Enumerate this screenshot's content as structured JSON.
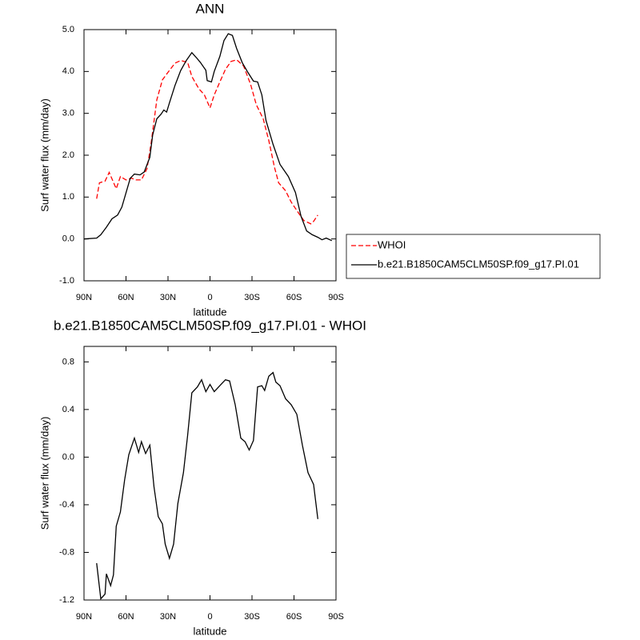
{
  "chart_data": [
    {
      "type": "line",
      "title": "ANN",
      "x_label": "latitude",
      "y_label": "Surf water flux (mm/day)",
      "xlim": [
        90,
        -90
      ],
      "xticks": [
        {
          "value": 90,
          "label": "90N"
        },
        {
          "value": 60,
          "label": "60N"
        },
        {
          "value": 30,
          "label": "30N"
        },
        0,
        {
          "value": -30,
          "label": "30S"
        },
        {
          "value": -60,
          "label": "60S"
        },
        {
          "value": -90,
          "label": "90S"
        }
      ],
      "ylim": [
        -1,
        5
      ],
      "yticks": [
        {
          "value": -1,
          "label": "-1.0"
        },
        {
          "value": 0,
          "label": "0.0"
        },
        {
          "value": 1,
          "label": "1.0"
        },
        {
          "value": 2,
          "label": "2.0"
        },
        {
          "value": 3,
          "label": "3.0"
        },
        {
          "value": 4,
          "label": "4.0"
        },
        {
          "value": 5,
          "label": "5.0"
        }
      ],
      "legend": "outside-right",
      "series": [
        {
          "name": "WHOI",
          "color": "#ff0000",
          "dashed": true,
          "x": [
            81,
            79,
            75,
            72,
            67,
            64,
            60,
            56,
            53,
            49,
            45,
            42,
            38,
            34,
            30,
            25,
            21,
            16,
            13,
            8,
            4,
            0,
            -3,
            -7,
            -11,
            -15,
            -19,
            -24,
            -29,
            -33,
            -38,
            -42,
            -46,
            -49,
            -54,
            -58,
            -63,
            -67,
            -72,
            -74,
            -77
          ],
          "values": [
            0.96,
            1.34,
            1.38,
            1.59,
            1.2,
            1.49,
            1.41,
            1.45,
            1.41,
            1.41,
            1.68,
            2.3,
            3.32,
            3.8,
            3.98,
            4.2,
            4.26,
            4.22,
            3.88,
            3.59,
            3.44,
            3.13,
            3.44,
            3.75,
            4.05,
            4.24,
            4.28,
            4.13,
            3.69,
            3.21,
            2.87,
            2.35,
            1.72,
            1.34,
            1.15,
            0.88,
            0.63,
            0.44,
            0.36,
            0.42,
            0.57
          ]
        },
        {
          "name": "b.e21.B1850CAM5CLM50SP.f09_g17.PI.01",
          "color": "#000000",
          "dashed": false,
          "x": [
            90,
            81,
            78,
            74,
            70,
            66,
            63,
            60,
            57,
            54,
            50,
            47,
            43,
            41,
            38,
            35,
            33,
            31,
            29,
            25,
            21,
            17,
            13,
            10,
            7,
            3,
            2,
            -1,
            -3,
            -7,
            -10,
            -13,
            -16,
            -19,
            -23,
            -27,
            -31,
            -34,
            -37,
            -40,
            -45,
            -50,
            -56,
            -61,
            -65,
            -69,
            -73,
            -77,
            -80,
            -83,
            -87
          ],
          "values": [
            0.0,
            0.02,
            0.1,
            0.28,
            0.48,
            0.57,
            0.76,
            1.1,
            1.45,
            1.55,
            1.53,
            1.6,
            1.95,
            2.48,
            2.87,
            2.98,
            3.08,
            3.03,
            3.25,
            3.67,
            4.02,
            4.26,
            4.45,
            4.34,
            4.22,
            4.03,
            3.78,
            3.75,
            4.0,
            4.36,
            4.74,
            4.9,
            4.86,
            4.55,
            4.21,
            3.98,
            3.77,
            3.75,
            3.44,
            2.83,
            2.26,
            1.78,
            1.49,
            1.11,
            0.54,
            0.19,
            0.1,
            0.04,
            -0.02,
            0.02,
            -0.04
          ]
        }
      ]
    },
    {
      "type": "line",
      "title": "b.e21.B1850CAM5CLM50SP.f09_g17.PI.01 - WHOI",
      "x_label": "latitude",
      "y_label": "Surf water flux (mm/day)",
      "xlim": [
        90,
        -90
      ],
      "xticks": [
        {
          "value": 90,
          "label": "90N"
        },
        {
          "value": 60,
          "label": "60N"
        },
        {
          "value": 30,
          "label": "30N"
        },
        0,
        {
          "value": -30,
          "label": "30S"
        },
        {
          "value": -60,
          "label": "60S"
        },
        {
          "value": -90,
          "label": "90S"
        }
      ],
      "ylim": [
        -1.2,
        0.93
      ],
      "yticks": [
        -1.2,
        -0.8,
        -0.4,
        {
          "value": 0,
          "label": "0.0"
        },
        0.4,
        0.8
      ],
      "series": [
        {
          "color": "#000000",
          "dashed": false,
          "x": [
            81,
            78,
            75,
            74,
            71,
            69,
            67,
            64,
            61,
            58,
            54,
            51,
            49,
            46,
            43,
            40,
            37,
            34,
            32,
            29,
            26,
            23,
            19,
            16,
            13,
            9,
            6,
            3,
            0,
            -3,
            -7,
            -11,
            -14,
            -18,
            -22,
            -25,
            -28,
            -31,
            -34,
            -37,
            -39,
            -42,
            -45,
            -47,
            -50,
            -54,
            -58,
            -62,
            -66,
            -70,
            -74,
            -77
          ],
          "values": [
            -0.89,
            -1.19,
            -1.15,
            -0.98,
            -1.08,
            -0.99,
            -0.58,
            -0.46,
            -0.19,
            0.02,
            0.16,
            0.04,
            0.13,
            0.03,
            0.1,
            -0.25,
            -0.5,
            -0.56,
            -0.73,
            -0.85,
            -0.73,
            -0.39,
            -0.13,
            0.18,
            0.54,
            0.59,
            0.65,
            0.55,
            0.61,
            0.55,
            0.6,
            0.65,
            0.64,
            0.44,
            0.16,
            0.13,
            0.06,
            0.14,
            0.59,
            0.6,
            0.56,
            0.68,
            0.71,
            0.63,
            0.6,
            0.49,
            0.44,
            0.36,
            0.1,
            -0.13,
            -0.23,
            -0.52
          ]
        }
      ]
    }
  ]
}
